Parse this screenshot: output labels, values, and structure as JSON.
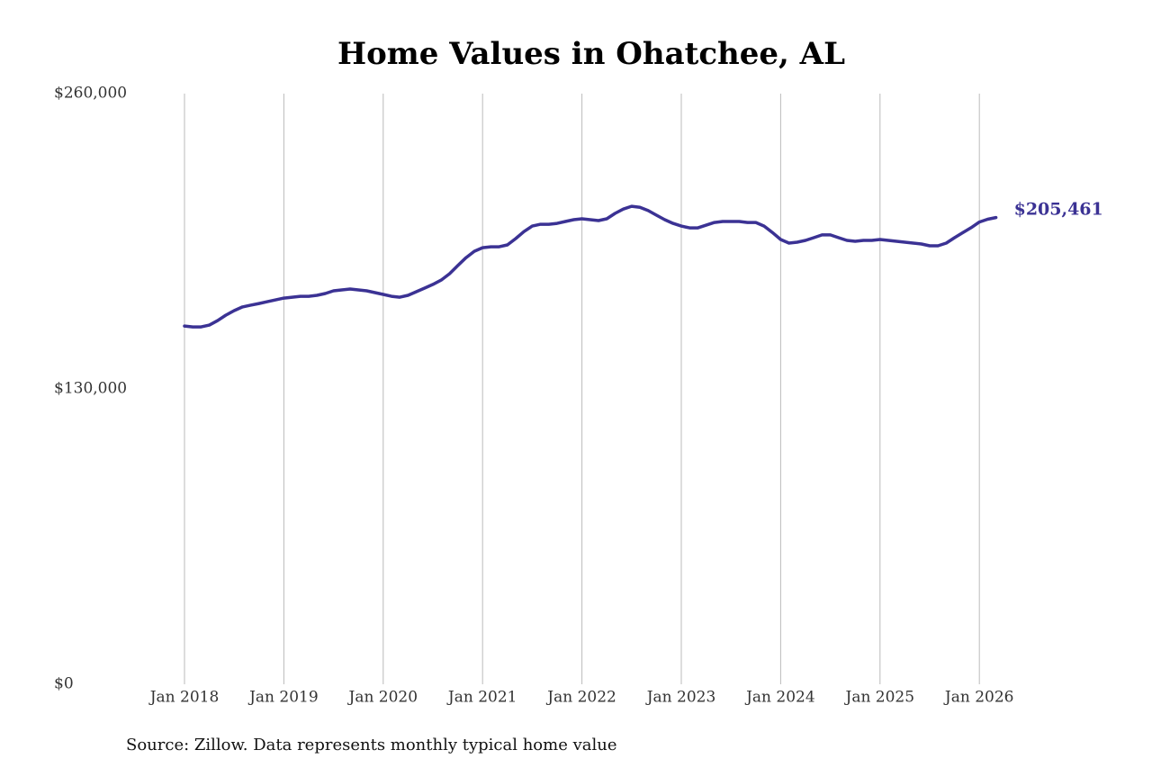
{
  "chart_data": {
    "type": "line",
    "title": "Home Values in Ohatchee, AL",
    "source": "Source: Zillow. Data represents monthly typical home value",
    "x": [
      "2018-01",
      "2018-02",
      "2018-03",
      "2018-04",
      "2018-05",
      "2018-06",
      "2018-07",
      "2018-08",
      "2018-09",
      "2018-10",
      "2018-11",
      "2018-12",
      "2019-01",
      "2019-02",
      "2019-03",
      "2019-04",
      "2019-05",
      "2019-06",
      "2019-07",
      "2019-08",
      "2019-09",
      "2019-10",
      "2019-11",
      "2019-12",
      "2020-01",
      "2020-02",
      "2020-03",
      "2020-04",
      "2020-05",
      "2020-06",
      "2020-07",
      "2020-08",
      "2020-09",
      "2020-10",
      "2020-11",
      "2020-12",
      "2021-01",
      "2021-02",
      "2021-03",
      "2021-04",
      "2021-05",
      "2021-06",
      "2021-07",
      "2021-08",
      "2021-09",
      "2021-10",
      "2021-11",
      "2021-12",
      "2022-01",
      "2022-02",
      "2022-03",
      "2022-04",
      "2022-05",
      "2022-06",
      "2022-07",
      "2022-08",
      "2022-09",
      "2022-10",
      "2022-11",
      "2022-12",
      "2023-01",
      "2023-02",
      "2023-03",
      "2023-04",
      "2023-05",
      "2023-06",
      "2023-07",
      "2023-08",
      "2023-09",
      "2023-10",
      "2023-11",
      "2023-12",
      "2024-01",
      "2024-02",
      "2024-03",
      "2024-04",
      "2024-05",
      "2024-06",
      "2024-07",
      "2024-08",
      "2024-09",
      "2024-10",
      "2024-11",
      "2024-12",
      "2025-01",
      "2025-02",
      "2025-03",
      "2025-04",
      "2025-05",
      "2025-06",
      "2025-07",
      "2025-08",
      "2025-09",
      "2025-10",
      "2025-11",
      "2025-12",
      "2026-01",
      "2026-02",
      "2026-03"
    ],
    "series": [
      {
        "name": "Home value",
        "color": "#3b3294",
        "values": [
          157700,
          157300,
          157300,
          158100,
          160100,
          162500,
          164500,
          166100,
          166900,
          167600,
          168400,
          169200,
          170000,
          170400,
          170800,
          170800,
          171200,
          172000,
          173200,
          173600,
          174000,
          173600,
          173200,
          172400,
          171600,
          170800,
          170400,
          171200,
          172800,
          174400,
          176000,
          177900,
          180700,
          184300,
          187800,
          190600,
          192200,
          192600,
          192600,
          193400,
          196200,
          199300,
          201700,
          202500,
          202500,
          202900,
          203700,
          204500,
          204900,
          204500,
          204100,
          204900,
          207300,
          209200,
          210400,
          210000,
          208500,
          206500,
          204500,
          202900,
          201700,
          200900,
          200900,
          202100,
          203300,
          203700,
          203700,
          203700,
          203300,
          203300,
          201700,
          198900,
          195800,
          194200,
          194600,
          195400,
          196600,
          197800,
          197800,
          196600,
          195400,
          195000,
          195400,
          195400,
          195800,
          195400,
          195000,
          194600,
          194200,
          193800,
          193000,
          193000,
          194200,
          196600,
          198800,
          201000,
          203500,
          204700,
          205461
        ],
        "value_labels": [
          null,
          null,
          null,
          null,
          null,
          null,
          null,
          null,
          null,
          null,
          null,
          null,
          null,
          null,
          null,
          null,
          null,
          null,
          null,
          null,
          null,
          null,
          null,
          null,
          null,
          null,
          null,
          null,
          null,
          null,
          null,
          null,
          null,
          null,
          null,
          null,
          null,
          null,
          null,
          null,
          null,
          null,
          null,
          null,
          null,
          null,
          null,
          null,
          null,
          null,
          null,
          null,
          null,
          null,
          null,
          null,
          null,
          null,
          null,
          null,
          null,
          null,
          null,
          null,
          null,
          null,
          null,
          null,
          null,
          null,
          null,
          null,
          null,
          null,
          null,
          null,
          null,
          null,
          null,
          null,
          null,
          null,
          null,
          null,
          null,
          null,
          null,
          null,
          null,
          null,
          null,
          null,
          null,
          null,
          null,
          null,
          null,
          null,
          "$205,461"
        ]
      }
    ],
    "xlim": [
      "2017-08",
      "2026-05"
    ],
    "xticks": [
      {
        "value": "2018-01",
        "label": "Jan 2018"
      },
      {
        "value": "2019-01",
        "label": "Jan 2019"
      },
      {
        "value": "2020-01",
        "label": "Jan 2020"
      },
      {
        "value": "2021-01",
        "label": "Jan 2021"
      },
      {
        "value": "2022-01",
        "label": "Jan 2022"
      },
      {
        "value": "2023-01",
        "label": "Jan 2023"
      },
      {
        "value": "2024-01",
        "label": "Jan 2024"
      },
      {
        "value": "2025-01",
        "label": "Jan 2025"
      },
      {
        "value": "2026-01",
        "label": "Jan 2026"
      }
    ],
    "ylim": [
      0,
      260000
    ],
    "yticks": [
      {
        "value": 0,
        "label": "$0"
      },
      {
        "value": 130000,
        "label": "$130,000"
      },
      {
        "value": 260000,
        "label": "$260,000"
      }
    ],
    "grid": "x"
  }
}
